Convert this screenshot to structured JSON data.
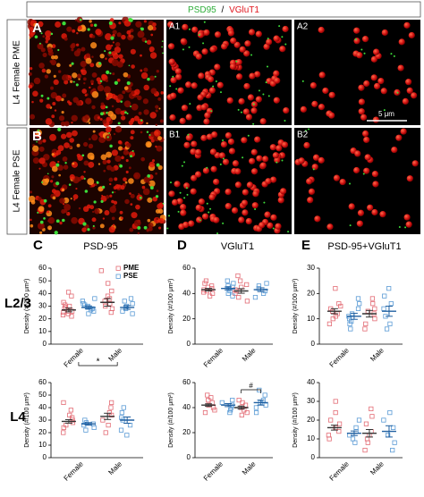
{
  "figure": {
    "header": [
      "PSD95",
      "/",
      "VGluT1"
    ],
    "image_rows": [
      {
        "label": "L4 Female PME",
        "panels": [
          "A",
          "A1",
          "A2"
        ]
      },
      {
        "label": "L4 Female PSE",
        "panels": [
          "B",
          "B1",
          "B2"
        ]
      }
    ],
    "scale_bar": "5 μm",
    "row_labels": [
      "L2/3",
      "L4"
    ]
  },
  "chart_data": {
    "type": "dot",
    "ylabel": "Density (#/100 μm²)",
    "categories": [
      "Female",
      "Male"
    ],
    "groups": [
      {
        "name": "PME",
        "color": "#e36b74"
      },
      {
        "name": "PSE",
        "color": "#5b9bd5"
      }
    ],
    "legend": "top-right",
    "panels": [
      {
        "panel": "C",
        "title": "PSD-95",
        "ylim": [
          0,
          60
        ],
        "yticks": [
          0,
          10,
          20,
          30,
          40,
          50,
          60
        ],
        "annotation": "*",
        "series": [
          {
            "values": [
              [
                22,
                23,
                24,
                25,
                26,
                26,
                27,
                28,
                29,
                30,
                31,
                33,
                38,
                41
              ],
              [
                25,
                28,
                30,
                32,
                34,
                36,
                38,
                42,
                48,
                58
              ]
            ],
            "mean": [
              27,
              33
            ],
            "sem": [
              1.5,
              3
            ]
          },
          {
            "values": [
              [
                24,
                26,
                27,
                28,
                29,
                30,
                31,
                32,
                34,
                36
              ],
              [
                24,
                26,
                28,
                29,
                30,
                32,
                34,
                36
              ]
            ],
            "mean": [
              29,
              29
            ],
            "sem": [
              1.2,
              1.5
            ]
          }
        ]
      },
      {
        "panel": "D",
        "title": "VGluT1",
        "ylim": [
          0,
          60
        ],
        "yticks": [
          0,
          20,
          40,
          60
        ],
        "series": [
          {
            "values": [
              [
                38,
                40,
                41,
                42,
                43,
                44,
                45,
                46,
                48,
                50
              ],
              [
                34,
                37,
                40,
                42,
                43,
                45,
                47,
                50,
                54
              ]
            ],
            "mean": [
              43,
              42
            ],
            "sem": [
              1,
              1.8
            ]
          },
          {
            "values": [
              [
                38,
                40,
                42,
                44,
                45,
                46,
                48,
                50
              ],
              [
                37,
                40,
                42,
                44,
                46,
                48
              ]
            ],
            "mean": [
              44,
              43
            ],
            "sem": [
              1.2,
              1.5
            ]
          }
        ]
      },
      {
        "panel": "E",
        "title": "PSD-95+VGluT1",
        "ylim": [
          0,
          30
        ],
        "yticks": [
          0,
          10,
          20,
          30
        ],
        "series": [
          {
            "values": [
              [
                8,
                10,
                11,
                12,
                13,
                14,
                15,
                16,
                22
              ],
              [
                6,
                8,
                10,
                12,
                13,
                14,
                16,
                18
              ]
            ],
            "mean": [
              13,
              12
            ],
            "sem": [
              1,
              1.3
            ]
          },
          {
            "values": [
              [
                6,
                8,
                9,
                10,
                11,
                12,
                14,
                16,
                18
              ],
              [
                6,
                8,
                11,
                14,
                16,
                19,
                22
              ]
            ],
            "mean": [
              11,
              13
            ],
            "sem": [
              1.2,
              2
            ]
          }
        ]
      },
      {
        "ylim": [
          0,
          60
        ],
        "yticks": [
          0,
          10,
          20,
          30,
          40,
          50,
          60
        ],
        "series": [
          {
            "values": [
              [
                20,
                24,
                26,
                28,
                30,
                32,
                34,
                38,
                44
              ],
              [
                20,
                26,
                30,
                34,
                36,
                40,
                44
              ]
            ],
            "mean": [
              29,
              33
            ],
            "sem": [
              1.4,
              2.5
            ]
          },
          {
            "values": [
              [
                22,
                24,
                26,
                27,
                28,
                30
              ],
              [
                18,
                22,
                26,
                30,
                32,
                36,
                40
              ]
            ],
            "mean": [
              27,
              30
            ],
            "sem": [
              1,
              2.5
            ]
          }
        ]
      },
      {
        "ylim": [
          0,
          60
        ],
        "yticks": [
          0,
          20,
          40,
          60
        ],
        "annotation": "#",
        "series": [
          {
            "values": [
              [
                36,
                38,
                40,
                42,
                44,
                46,
                48,
                50
              ],
              [
                34,
                36,
                38,
                40,
                42,
                44,
                46
              ]
            ],
            "mean": [
              42,
              40
            ],
            "sem": [
              1,
              1.2
            ]
          },
          {
            "values": [
              [
                36,
                38,
                40,
                42,
                44,
                46
              ],
              [
                36,
                40,
                42,
                44,
                46,
                50,
                54
              ]
            ],
            "mean": [
              42,
              44
            ],
            "sem": [
              1.2,
              2
            ]
          }
        ]
      },
      {
        "ylim": [
          0,
          40
        ],
        "yticks": [
          0,
          10,
          20,
          30,
          40
        ],
        "series": [
          {
            "values": [
              [
                10,
                12,
                14,
                16,
                18,
                20,
                24,
                30
              ],
              [
                4,
                8,
                10,
                12,
                14,
                18,
                22,
                26
              ]
            ],
            "mean": [
              16,
              13
            ],
            "sem": [
              1.3,
              2
            ]
          },
          {
            "values": [
              [
                8,
                10,
                12,
                14,
                16,
                20
              ],
              [
                4,
                8,
                12,
                16,
                20,
                24
              ]
            ],
            "mean": [
              13,
              14
            ],
            "sem": [
              1.2,
              3
            ]
          }
        ]
      }
    ]
  }
}
